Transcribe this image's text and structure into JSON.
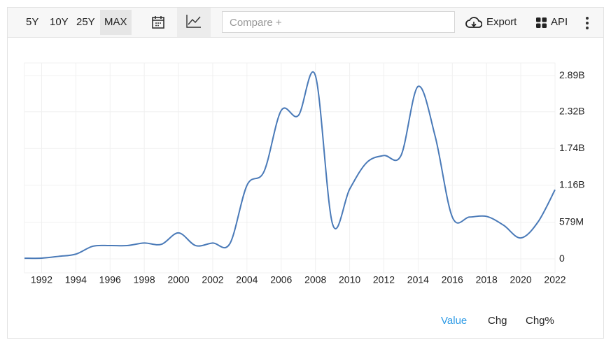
{
  "toolbar": {
    "ranges": [
      "5Y",
      "10Y",
      "25Y",
      "MAX"
    ],
    "active_range": "MAX",
    "compare_placeholder": "Compare +",
    "export": "Export",
    "api": "API"
  },
  "chart_data": {
    "type": "line",
    "x": [
      1991,
      1992,
      1993,
      1994,
      1995,
      1996,
      1997,
      1998,
      1999,
      2000,
      2001,
      2002,
      2003,
      2004,
      2005,
      2006,
      2007,
      2008,
      2009,
      2010,
      2011,
      2012,
      2013,
      2014,
      2015,
      2016,
      2017,
      2018,
      2019,
      2020,
      2021,
      2022
    ],
    "series": [
      {
        "color": "#4a7ab8",
        "values": [
          10000000,
          12000000,
          40000000,
          75000000,
          200000000,
          210000000,
          210000000,
          250000000,
          230000000,
          410000000,
          210000000,
          250000000,
          240000000,
          1160000000,
          1380000000,
          2340000000,
          2260000000,
          2890000000,
          550000000,
          1100000000,
          1520000000,
          1630000000,
          1630000000,
          2720000000,
          1930000000,
          660000000,
          660000000,
          670000000,
          530000000,
          330000000,
          580000000,
          1090000000
        ]
      }
    ],
    "xlim": [
      1991,
      2022
    ],
    "xticks": [
      1992,
      1994,
      1996,
      1998,
      2000,
      2002,
      2004,
      2006,
      2008,
      2010,
      2012,
      2014,
      2016,
      2018,
      2020,
      2022
    ],
    "ylim": [
      -220000000,
      3090000000
    ],
    "yticks": [
      0,
      {
        "value": 579000000,
        "label": "579M"
      },
      {
        "value": 1160000000,
        "label": "1.16B"
      },
      {
        "value": 1740000000,
        "label": "1.74B"
      },
      {
        "value": 2320000000,
        "label": "2.32B"
      },
      {
        "value": 2890000000,
        "label": "2.89B"
      }
    ],
    "grid": true
  },
  "footer": {
    "tabs": [
      "Value",
      "Chg",
      "Chg%"
    ],
    "active_tab": "Value"
  }
}
